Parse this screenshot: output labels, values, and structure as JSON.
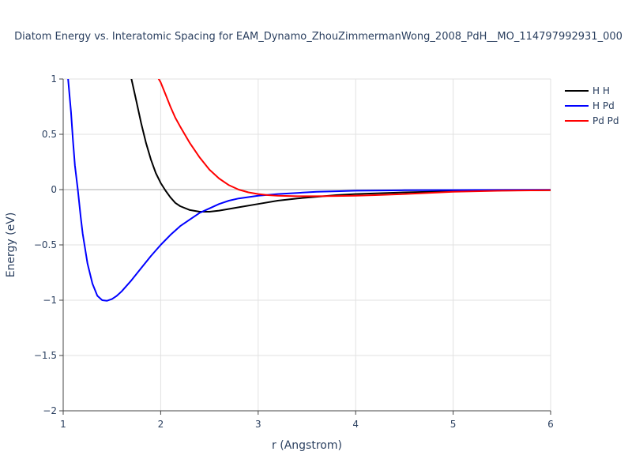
{
  "chart_data": {
    "type": "line",
    "title": "Diatom Energy vs. Interatomic Spacing for EAM_Dynamo_ZhouZimmermanWong_2008_PdH__MO_114797992931_000",
    "xlabel": "r (Angstrom)",
    "ylabel": "Energy (eV)",
    "xlim": [
      1,
      6
    ],
    "ylim": [
      -2,
      1
    ],
    "x_ticks": [
      1,
      2,
      3,
      4,
      5,
      6
    ],
    "x_tick_labels": [
      "1",
      "2",
      "3",
      "4",
      "5",
      "6"
    ],
    "y_ticks": [
      -2,
      -1.5,
      -1,
      -0.5,
      0,
      0.5,
      1
    ],
    "y_tick_labels": [
      "−2",
      "−1.5",
      "−1",
      "−0.5",
      "0",
      "0.5",
      "1"
    ],
    "grid": true,
    "legend_position": "top-right",
    "series": [
      {
        "name": "H H",
        "color": "#000000",
        "x": [
          1.7,
          1.75,
          1.8,
          1.85,
          1.9,
          1.95,
          2.0,
          2.05,
          2.1,
          2.15,
          2.2,
          2.3,
          2.4,
          2.5,
          2.6,
          2.7,
          2.8,
          3.0,
          3.2,
          3.4,
          3.6,
          3.8,
          4.0,
          4.5,
          5.0,
          5.5,
          6.0
        ],
        "y": [
          1.0,
          0.8,
          0.6,
          0.42,
          0.27,
          0.15,
          0.06,
          -0.01,
          -0.07,
          -0.12,
          -0.15,
          -0.185,
          -0.2,
          -0.2,
          -0.19,
          -0.175,
          -0.16,
          -0.13,
          -0.1,
          -0.08,
          -0.065,
          -0.05,
          -0.04,
          -0.025,
          -0.015,
          -0.008,
          -0.005
        ]
      },
      {
        "name": "H Pd",
        "color": "#0000ff",
        "x": [
          1.05,
          1.08,
          1.1,
          1.12,
          1.15,
          1.18,
          1.2,
          1.25,
          1.3,
          1.35,
          1.4,
          1.45,
          1.5,
          1.55,
          1.6,
          1.7,
          1.8,
          1.9,
          2.0,
          2.1,
          2.2,
          2.3,
          2.4,
          2.5,
          2.6,
          2.7,
          2.8,
          3.0,
          3.2,
          3.4,
          3.6,
          3.8,
          4.0,
          4.5,
          5.0,
          5.5,
          6.0
        ],
        "y": [
          1.0,
          0.7,
          0.45,
          0.22,
          0.0,
          -0.25,
          -0.4,
          -0.67,
          -0.85,
          -0.96,
          -1.0,
          -1.005,
          -0.99,
          -0.96,
          -0.92,
          -0.82,
          -0.71,
          -0.6,
          -0.5,
          -0.41,
          -0.33,
          -0.27,
          -0.21,
          -0.17,
          -0.13,
          -0.1,
          -0.08,
          -0.055,
          -0.04,
          -0.03,
          -0.02,
          -0.015,
          -0.01,
          -0.006,
          -0.004,
          -0.003,
          -0.002
        ]
      },
      {
        "name": "Pd Pd",
        "color": "#ff0000",
        "x": [
          1.98,
          2.0,
          2.05,
          2.1,
          2.15,
          2.2,
          2.3,
          2.4,
          2.5,
          2.6,
          2.7,
          2.8,
          2.9,
          3.0,
          3.1,
          3.2,
          3.4,
          3.6,
          3.8,
          4.0,
          4.2,
          4.5,
          5.0,
          5.5,
          6.0
        ],
        "y": [
          1.0,
          0.97,
          0.86,
          0.75,
          0.65,
          0.57,
          0.42,
          0.29,
          0.18,
          0.1,
          0.04,
          0.0,
          -0.025,
          -0.04,
          -0.05,
          -0.055,
          -0.06,
          -0.06,
          -0.058,
          -0.055,
          -0.05,
          -0.04,
          -0.02,
          -0.01,
          -0.005
        ]
      }
    ]
  }
}
